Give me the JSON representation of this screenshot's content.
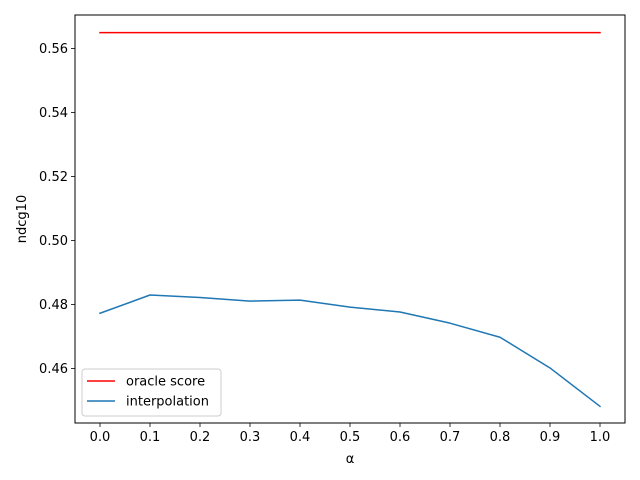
{
  "chart_data": {
    "type": "line",
    "title": "",
    "xlabel": "α",
    "ylabel": "ndcg10",
    "xlim": [
      -0.05,
      1.05
    ],
    "ylim": [
      0.443,
      0.5705
    ],
    "xticks": [
      0.0,
      0.1,
      0.2,
      0.3,
      0.4,
      0.5,
      0.6,
      0.7,
      0.8,
      0.9,
      1.0
    ],
    "xtick_labels": [
      "0.0",
      "0.1",
      "0.2",
      "0.3",
      "0.4",
      "0.5",
      "0.6",
      "0.7",
      "0.8",
      "0.9",
      "1.0"
    ],
    "yticks": [
      0.46,
      0.48,
      0.5,
      0.52,
      0.54,
      0.56
    ],
    "ytick_labels": [
      "0.46",
      "0.48",
      "0.50",
      "0.52",
      "0.54",
      "0.56"
    ],
    "grid": false,
    "legend_position": "lower-left",
    "series": [
      {
        "name": "oracle score",
        "color": "#ff0000",
        "x": [
          0.0,
          1.0
        ],
        "y": [
          0.565,
          0.565
        ]
      },
      {
        "name": "interpolation",
        "color": "#1f77b4",
        "x": [
          0.0,
          0.1,
          0.2,
          0.3,
          0.4,
          0.5,
          0.6,
          0.7,
          0.8,
          0.9,
          1.0
        ],
        "y": [
          0.4773,
          0.483,
          0.4822,
          0.4811,
          0.4814,
          0.4792,
          0.4777,
          0.4742,
          0.4698,
          0.4602,
          0.4482
        ]
      }
    ]
  }
}
